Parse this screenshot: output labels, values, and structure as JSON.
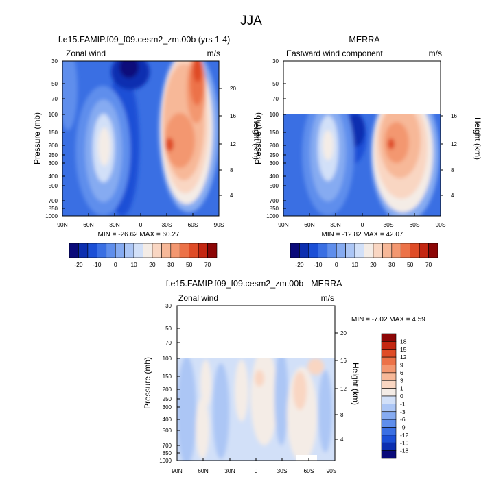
{
  "figure_title": "JJA",
  "chart_data": [
    {
      "type": "heatmap",
      "title": "f.e15.FAMIP.f09_f09.cesm2_zm.00b (yrs 1-4)",
      "left_label": "Zonal wind",
      "units": "m/s",
      "xlabel": "",
      "ylabel": "Pressure (mb)",
      "ylabel_right": "Height (km)",
      "x_ticks": [
        "90N",
        "60N",
        "30N",
        "0",
        "30S",
        "60S",
        "90S"
      ],
      "y_ticks": [
        "30",
        "50",
        "70",
        "100",
        "150",
        "200",
        "250",
        "300",
        "400",
        "500",
        "700",
        "850",
        "1000"
      ],
      "height_ticks": [
        "20",
        "16",
        "12",
        "8",
        "4"
      ],
      "stats": "MIN = -26.62  MAX = 60.27",
      "levels": [
        "-20",
        "-10",
        "0",
        "10",
        "20",
        "30",
        "50",
        "70"
      ],
      "colors": [
        "#0a0a7a",
        "#0c2fb0",
        "#1b4fd6",
        "#3a6fe3",
        "#5f8eec",
        "#86abf1",
        "#acc6f5",
        "#d2e0f8",
        "#f4ece6",
        "#f9d6c2",
        "#f7b898",
        "#f39770",
        "#ec7248",
        "#df4c27",
        "#c42712",
        "#8c0606"
      ],
      "ylim": [
        1000,
        30
      ],
      "x_range": [
        "90N",
        "90S"
      ]
    },
    {
      "type": "heatmap",
      "title": "MERRA",
      "left_label": "Eastward wind component",
      "units": "m/s",
      "xlabel": "",
      "ylabel": "Pressure (mb)",
      "ylabel_right": "Height (km)",
      "x_ticks": [
        "90N",
        "60N",
        "30N",
        "0",
        "30S",
        "60S",
        "90S"
      ],
      "y_ticks": [
        "30",
        "50",
        "70",
        "100",
        "150",
        "200",
        "250",
        "300",
        "400",
        "500",
        "700",
        "850",
        "1000"
      ],
      "height_ticks": [
        "16",
        "12",
        "8",
        "4"
      ],
      "stats": "MIN = -12.82  MAX = 42.07",
      "levels": [
        "-20",
        "-10",
        "0",
        "10",
        "20",
        "30",
        "50",
        "70"
      ],
      "colors": [
        "#0a0a7a",
        "#0c2fb0",
        "#1b4fd6",
        "#3a6fe3",
        "#5f8eec",
        "#86abf1",
        "#acc6f5",
        "#d2e0f8",
        "#f4ece6",
        "#f9d6c2",
        "#f7b898",
        "#f39770",
        "#ec7248",
        "#df4c27",
        "#c42712",
        "#8c0606"
      ],
      "ylim": [
        1000,
        30
      ],
      "data_top_pressure": 100
    },
    {
      "type": "heatmap",
      "title": "f.e15.FAMIP.f09_f09.cesm2_zm.00b - MERRA",
      "left_label": "Zonal wind",
      "units": "m/s",
      "xlabel": "",
      "ylabel": "Pressure (mb)",
      "ylabel_right": "Height (km)",
      "x_ticks": [
        "90N",
        "60N",
        "30N",
        "0",
        "30S",
        "60S",
        "90S"
      ],
      "y_ticks": [
        "30",
        "50",
        "70",
        "100",
        "150",
        "200",
        "250",
        "300",
        "400",
        "500",
        "700",
        "850",
        "1000"
      ],
      "height_ticks": [
        "20",
        "16",
        "12",
        "8",
        "4"
      ],
      "stats": "MIN = -7.02  MAX =  4.59",
      "levels": [
        "18",
        "15",
        "12",
        "9",
        "6",
        "3",
        "1",
        "0",
        "-1",
        "-3",
        "-6",
        "-9",
        "-12",
        "-15",
        "-18"
      ],
      "colors": [
        "#8c0606",
        "#c42712",
        "#df4c27",
        "#ec7248",
        "#f39770",
        "#f7b898",
        "#f9d6c2",
        "#f4ece6",
        "#d2e0f8",
        "#acc6f5",
        "#86abf1",
        "#5f8eec",
        "#3a6fe3",
        "#1b4fd6",
        "#0c2fb0",
        "#0a0a7a"
      ],
      "ylim": [
        1000,
        30
      ],
      "data_top_pressure": 100
    }
  ]
}
